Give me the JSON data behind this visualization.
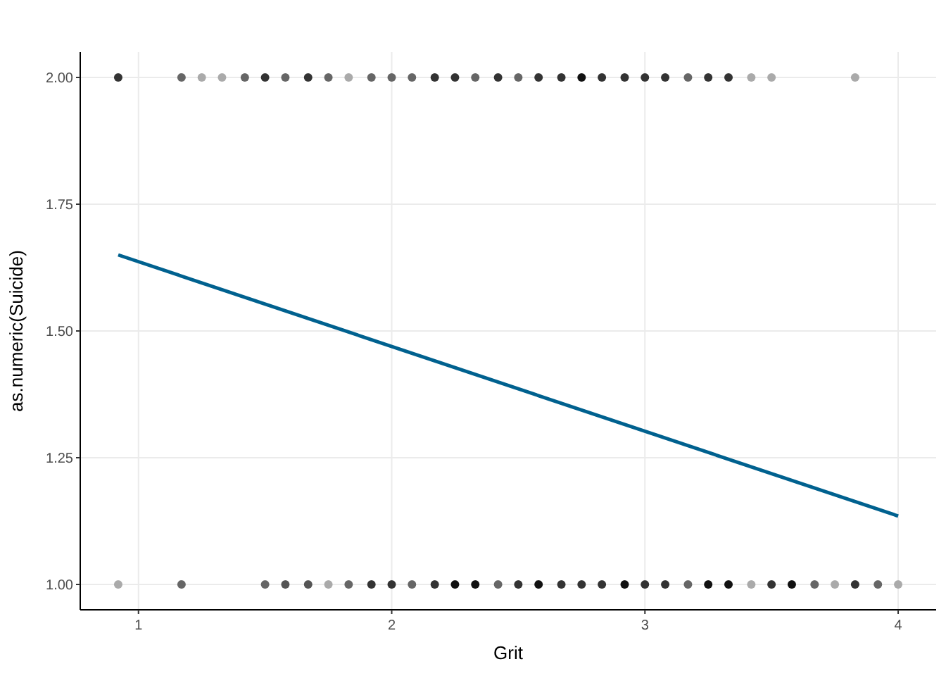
{
  "chart_data": {
    "type": "scatter",
    "xlabel": "Grit",
    "ylabel": "as.numeric(Suicide)",
    "xlim": [
      0.77,
      4.15
    ],
    "ylim": [
      0.95,
      2.05
    ],
    "xticks": [
      1,
      2,
      3,
      4
    ],
    "yticks": [
      {
        "value": 1,
        "label": "1.00"
      },
      {
        "value": 1.25,
        "label": "1.25"
      },
      {
        "value": 1.5,
        "label": "1.50"
      },
      {
        "value": 1.75,
        "label": "1.75"
      },
      {
        "value": 2,
        "label": "2.00"
      }
    ],
    "grid": true,
    "marker": "circle",
    "series": [
      {
        "x": [
          0.92,
          1.17,
          1.25,
          1.33,
          1.42,
          1.5,
          1.58,
          1.67,
          1.75,
          1.83,
          1.92,
          2,
          2.08,
          2.17,
          2.25,
          2.33,
          2.42,
          2.5,
          2.58,
          2.67,
          2.75,
          2.83,
          2.92,
          3,
          3.08,
          3.17,
          3.25,
          3.33,
          3.42,
          3.5,
          3.83
        ],
        "values": [
          2,
          2,
          2,
          2,
          2,
          2,
          2,
          2,
          2,
          2,
          2,
          2,
          2,
          2,
          2,
          2,
          2,
          2,
          2,
          2,
          2,
          2,
          2,
          2,
          2,
          2,
          2,
          2,
          2,
          2,
          2
        ],
        "colors": [
          "#333333",
          "#666666",
          "#aaaaaa",
          "#aaaaaa",
          "#666666",
          "#333333",
          "#666666",
          "#333333",
          "#666666",
          "#aaaaaa",
          "#666666",
          "#666666",
          "#666666",
          "#333333",
          "#333333",
          "#666666",
          "#333333",
          "#666666",
          "#333333",
          "#333333",
          "#111111",
          "#333333",
          "#333333",
          "#333333",
          "#333333",
          "#666666",
          "#333333",
          "#333333",
          "#aaaaaa",
          "#aaaaaa",
          "#aaaaaa"
        ]
      },
      {
        "x": [
          0.92,
          1.17,
          1.5,
          1.58,
          1.67,
          1.75,
          1.83,
          1.92,
          2,
          2.08,
          2.17,
          2.25,
          2.33,
          2.42,
          2.5,
          2.58,
          2.67,
          2.75,
          2.83,
          2.92,
          3,
          3.08,
          3.17,
          3.25,
          3.33,
          3.42,
          3.5,
          3.58,
          3.67,
          3.75,
          3.83,
          3.92,
          4
        ],
        "values": [
          1,
          1,
          1,
          1,
          1,
          1,
          1,
          1,
          1,
          1,
          1,
          1,
          1,
          1,
          1,
          1,
          1,
          1,
          1,
          1,
          1,
          1,
          1,
          1,
          1,
          1,
          1,
          1,
          1,
          1,
          1,
          1,
          1
        ],
        "colors": [
          "#aaaaaa",
          "#666666",
          "#666666",
          "#555555",
          "#555555",
          "#aaaaaa",
          "#666666",
          "#333333",
          "#333333",
          "#666666",
          "#333333",
          "#111111",
          "#111111",
          "#666666",
          "#333333",
          "#111111",
          "#333333",
          "#333333",
          "#333333",
          "#111111",
          "#333333",
          "#333333",
          "#666666",
          "#111111",
          "#111111",
          "#aaaaaa",
          "#333333",
          "#111111",
          "#666666",
          "#aaaaaa",
          "#333333",
          "#666666",
          "#aaaaaa"
        ]
      },
      {
        "type": "line",
        "x": [
          0.92,
          4
        ],
        "values": [
          1.65,
          1.135
        ],
        "color": "#00618f",
        "marker": "none"
      }
    ]
  }
}
